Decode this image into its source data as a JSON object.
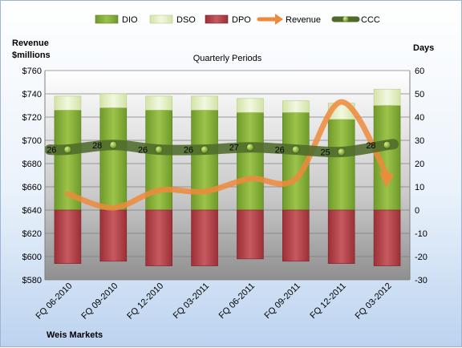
{
  "chart_data": {
    "type": "bar",
    "title": "Quarterly Periods",
    "company": "Weis Markets",
    "y_left_label": [
      "Revenue",
      "$millions"
    ],
    "y_right_label": "Days",
    "y_left_range": [
      580,
      760
    ],
    "y_left_ticks": [
      "$580",
      "$600",
      "$620",
      "$640",
      "$660",
      "$680",
      "$700",
      "$720",
      "$740",
      "$760"
    ],
    "y_right_range": [
      -30,
      60
    ],
    "y_right_ticks": [
      "-30",
      "-20",
      "-10",
      "0",
      "10",
      "20",
      "30",
      "40",
      "50",
      "60"
    ],
    "categories": [
      "FQ 06-2010",
      "FQ 09-2010",
      "FQ 12-2010",
      "FQ 03-2011",
      "FQ 06-2011",
      "FQ 09-2011",
      "FQ 12-2011",
      "FQ 03-2012"
    ],
    "legend": [
      "DIO",
      "DSO",
      "DPO",
      "Revenue",
      "CCC"
    ],
    "colors": {
      "DIO": "#8db33c",
      "DSO": "#e3f0c2",
      "DPO": "#b7454c",
      "Revenue": "#ee8a3c",
      "CCC": "#4f6b2a"
    },
    "series": [
      {
        "name": "DIO",
        "axis": "right",
        "values": [
          43,
          44,
          43,
          43,
          42,
          42,
          39,
          45
        ]
      },
      {
        "name": "DSO",
        "axis": "right",
        "values": [
          6,
          6,
          6,
          6,
          6,
          5,
          7,
          7
        ]
      },
      {
        "name": "DPO",
        "axis": "right",
        "values": [
          -23,
          -22,
          -24,
          -24,
          -21,
          -22,
          -23,
          -24
        ]
      },
      {
        "name": "Revenue",
        "axis": "left",
        "values": [
          654,
          642,
          657,
          656,
          667,
          667,
          733,
          662
        ]
      },
      {
        "name": "CCC",
        "axis": "right",
        "values": [
          26,
          28,
          26,
          26,
          27,
          26,
          25,
          28
        ]
      }
    ],
    "ccc_labels": [
      "26",
      "28",
      "26",
      "26",
      "27",
      "26",
      "25",
      "28"
    ],
    "grid": true,
    "legend_position": "top"
  }
}
